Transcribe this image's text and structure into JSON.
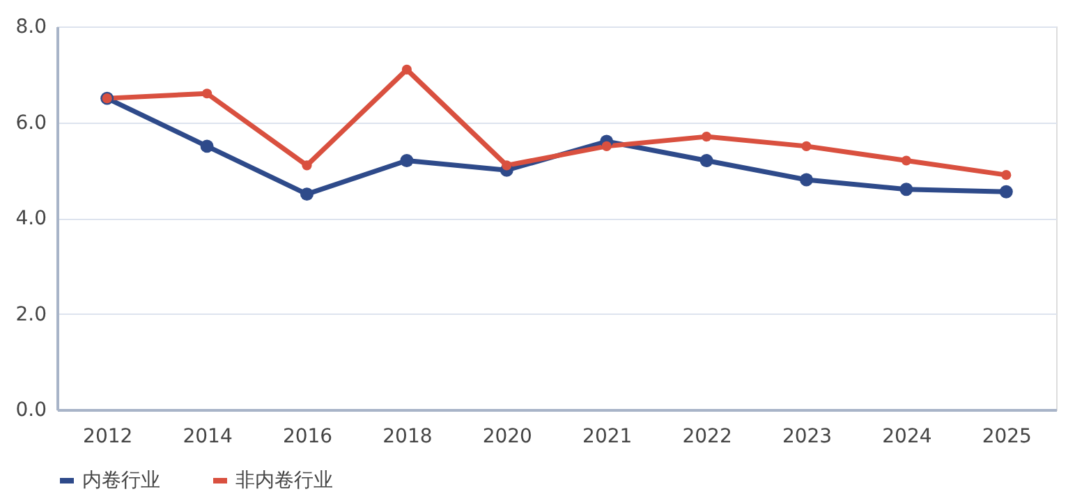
{
  "chart_data": {
    "type": "line",
    "categories": [
      "2012",
      "2014",
      "2016",
      "2018",
      "2020",
      "2021",
      "2022",
      "2023",
      "2024",
      "2025"
    ],
    "series": [
      {
        "name": "内卷行业",
        "color": "#2e4a8a",
        "values": [
          6.5,
          5.5,
          4.5,
          5.2,
          5.0,
          5.6,
          5.2,
          4.8,
          4.6,
          4.55
        ]
      },
      {
        "name": "非内卷行业",
        "color": "#d9503f",
        "values": [
          6.5,
          6.6,
          5.1,
          7.1,
          5.1,
          5.5,
          5.7,
          5.5,
          5.2,
          4.9
        ]
      }
    ],
    "ylim": [
      0,
      8
    ],
    "yticks": [
      {
        "value": 0,
        "label": "0.0"
      },
      {
        "value": 2,
        "label": "2.0"
      },
      {
        "value": 4,
        "label": "4.0"
      },
      {
        "value": 6,
        "label": "6.0"
      },
      {
        "value": 8,
        "label": "8.0"
      }
    ],
    "grid": "y",
    "legend": "bottom",
    "marker": "circle",
    "line_style": "solid"
  }
}
